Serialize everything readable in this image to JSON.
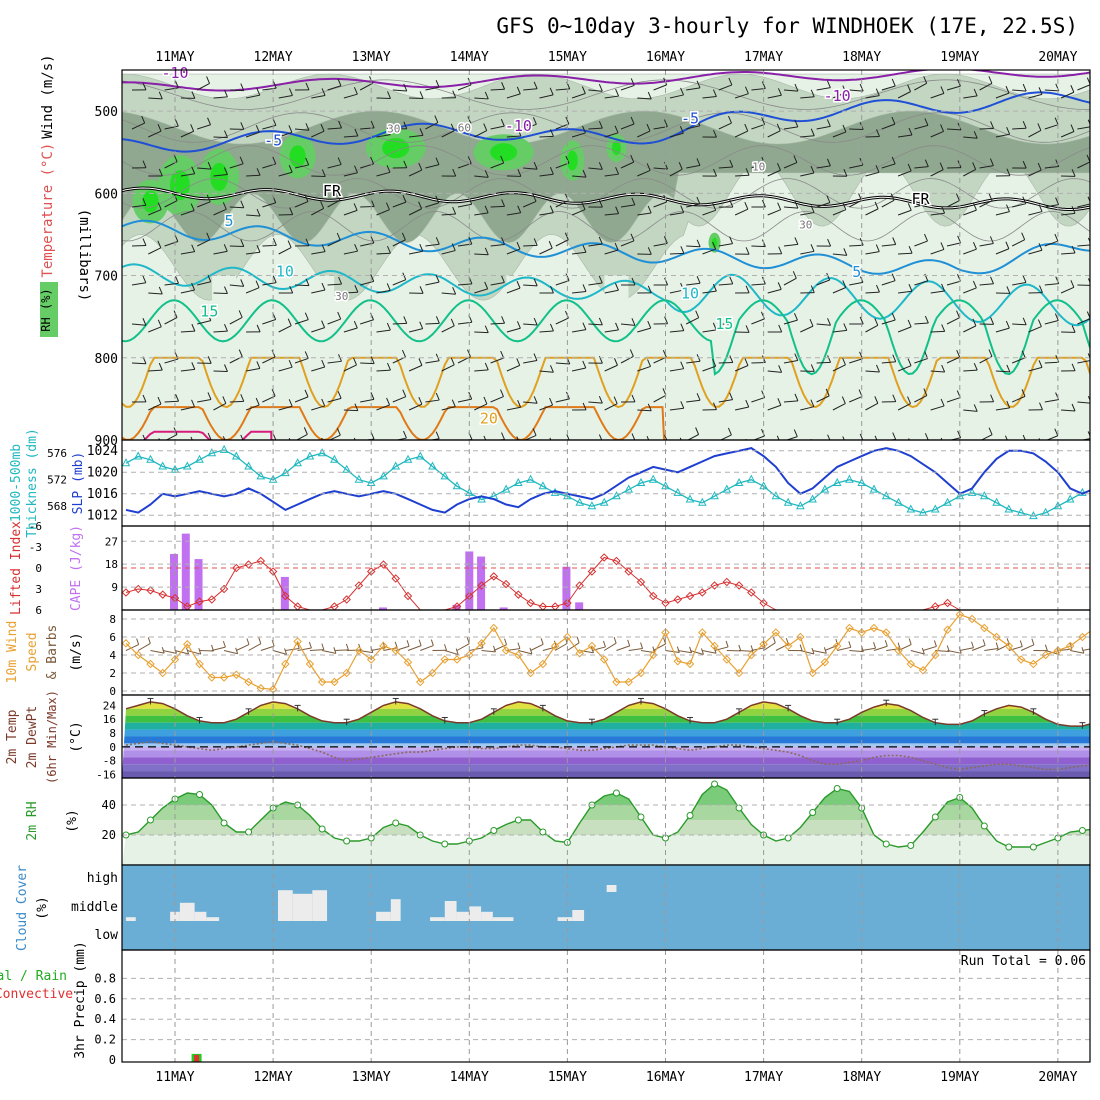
{
  "title": "GFS 0~10day 3-hourly for WINDHOEK (17E, 22.5S)",
  "days": [
    "11MAY",
    "12MAY",
    "13MAY",
    "14MAY",
    "15MAY",
    "16MAY",
    "17MAY",
    "18MAY",
    "19MAY",
    "20MAY"
  ],
  "colors": {
    "rh_light": "#e6f2e6",
    "rh_mid": "#c2d6c2",
    "rh_dark": "#8fa88f",
    "rh_green": "#66cc66",
    "rh_bright": "#22dd22",
    "temp_m10": "#8a1fa8",
    "temp_m5": "#1f4fd6",
    "temp_0": "#000000",
    "temp_5": "#1f8fd6",
    "temp_10": "#1fb8c8",
    "temp_15": "#12c08a",
    "temp_20": "#e0a020",
    "temp_25": "#e07a18",
    "temp_30": "#d81b7a",
    "slp": "#1f3fd0",
    "thickness": "#20b8c0",
    "lifted": "#d83030",
    "cape": "#c070f0",
    "wind_speed": "#e8a030",
    "cloud_bg": "#6aaed6",
    "cloud_fill": "#ececec",
    "rh_line": "#2a9a2a"
  },
  "chart_data": [
    {
      "panel": "cross_section",
      "type": "heatmap",
      "ylabel_parts": [
        "RH (%)",
        "Temperature (°C)",
        "Wind (m/s)"
      ],
      "ylabel_unit": "(millibars)",
      "ylim": [
        900,
        450
      ],
      "yticks": [
        500,
        600,
        700,
        800,
        900
      ],
      "contour_labels": [
        {
          "text": "-10",
          "day": 0.0,
          "p": 460
        },
        {
          "text": "-10",
          "day": 6.75,
          "p": 488
        },
        {
          "text": "-10",
          "day": 3.5,
          "p": 524
        },
        {
          "text": "-5",
          "day": 1.0,
          "p": 542
        },
        {
          "text": "-5",
          "day": 5.25,
          "p": 515
        },
        {
          "text": "FR",
          "day": 1.6,
          "p": 603
        },
        {
          "text": "FR",
          "day": 7.6,
          "p": 613
        },
        {
          "text": "5",
          "day": 0.55,
          "p": 640
        },
        {
          "text": "5",
          "day": 6.95,
          "p": 702
        },
        {
          "text": "10",
          "day": 1.12,
          "p": 701
        },
        {
          "text": "10",
          "day": 5.25,
          "p": 728
        },
        {
          "text": "15",
          "day": 0.35,
          "p": 750
        },
        {
          "text": "15",
          "day": 5.6,
          "p": 765
        },
        {
          "text": "20",
          "day": 3.2,
          "p": 880
        },
        {
          "text": "30",
          "day": 2.23,
          "p": 526
        },
        {
          "text": "30",
          "day": 6.43,
          "p": 643
        },
        {
          "text": "30",
          "day": 1.7,
          "p": 730
        },
        {
          "text": "60",
          "day": 2.95,
          "p": 525
        },
        {
          "text": "10",
          "day": 5.95,
          "p": 572
        }
      ]
    },
    {
      "panel": "slp_thickness",
      "type": "line",
      "ylabel_left": [
        "1000-500mb",
        "Thickness (dm)"
      ],
      "ylabel_right": "SLP (mb)",
      "left_ticks": [
        576,
        572,
        568
      ],
      "right_ticks": [
        1024,
        1020,
        1016,
        1012
      ],
      "series": [
        {
          "name": "SLP (mb)",
          "values": [
            1013,
            1012.5,
            1014,
            1016,
            1015.5,
            1016,
            1016.5,
            1016,
            1015.5,
            1016,
            1017,
            1016,
            1014.5,
            1013,
            1014,
            1015,
            1016,
            1016.5,
            1016,
            1015.5,
            1016,
            1016.5,
            1016,
            1015,
            1014,
            1013,
            1012.5,
            1014,
            1015,
            1015.5,
            1015,
            1014,
            1013.5,
            1015,
            1016,
            1016.5,
            1016,
            1015.5,
            1015,
            1016,
            1017.5,
            1019,
            1020,
            1021,
            1020.5,
            1020,
            1021,
            1022,
            1023,
            1023.5,
            1024,
            1024.5,
            1023,
            1021,
            1018,
            1016,
            1017,
            1019,
            1021,
            1022,
            1023,
            1024,
            1024.5,
            1024,
            1023,
            1021.5,
            1020,
            1018,
            1016,
            1017,
            1020,
            1022.5,
            1024,
            1024,
            1023.5,
            1022,
            1020,
            1017,
            1016,
            1017,
            1019,
            1021,
            1022.5,
            1023,
            1022.5,
            1022,
            1021,
            1020,
            1018,
            1016.5,
            1017,
            1019,
            1021,
            1022,
            1022.5,
            1023
          ]
        },
        {
          "name": "1000-500mb Thickness (dm)",
          "values": [
            574.5,
            575.5,
            575,
            574,
            573.5,
            574,
            575,
            576,
            576.5,
            575.5,
            574,
            572.5,
            572,
            573,
            574.5,
            575.5,
            576,
            575,
            573.5,
            572,
            571.5,
            572.5,
            574,
            575,
            575.5,
            574,
            572.5,
            571,
            570,
            569,
            569.5,
            570.5,
            571.5,
            572,
            571,
            570,
            569.5,
            568.5,
            568,
            568.5,
            569.5,
            570.5,
            571.5,
            572,
            571,
            570,
            569,
            568.5,
            569.5,
            570.5,
            571.5,
            572,
            571,
            569.5,
            568.5,
            568,
            569,
            570.5,
            571.5,
            572,
            571.5,
            570.5,
            569.5,
            568.5,
            567.5,
            567,
            567.5,
            568.5,
            569.5,
            570,
            569.5,
            568.5,
            567.5,
            567,
            566.5,
            567,
            568,
            569,
            570,
            570.5,
            570,
            569,
            568,
            567.5,
            567,
            567.5,
            568.5,
            569.5,
            569,
            568,
            567,
            566.5,
            566.5,
            567,
            567.5,
            567.5
          ]
        }
      ]
    },
    {
      "panel": "lifted_cape",
      "type": "bar",
      "ylabel_left": "Lifted Index",
      "ylabel_right": "CAPE (J/kg)",
      "left_ticks": [
        "-6",
        "-3",
        "0",
        "3",
        "6"
      ],
      "right_ticks": [
        "27",
        "18",
        "9"
      ],
      "series": [
        {
          "name": "Lifted Index",
          "values": [
            3.5,
            3,
            3.2,
            3.8,
            4.3,
            5.5,
            4.8,
            4.5,
            3,
            0,
            -0.5,
            -1,
            0.5,
            4,
            5.5,
            6,
            6,
            5.5,
            4.5,
            2.5,
            0.5,
            -0.5,
            1.5,
            4,
            6,
            6,
            6,
            5.5,
            4,
            2.5,
            1.2,
            2.3,
            3.8,
            5,
            5.5,
            5.5,
            5,
            2.5,
            0.5,
            -1.5,
            -1,
            0.5,
            2,
            4,
            5,
            4.5,
            4,
            3.5,
            2.5,
            2,
            2.5,
            3.5,
            5,
            6,
            6,
            6,
            6,
            6,
            6,
            6,
            6,
            6,
            6,
            6,
            6,
            6,
            5.5,
            5,
            6,
            6,
            6,
            6,
            6,
            6,
            6,
            6,
            6,
            6,
            6,
            6,
            6,
            6,
            6,
            6,
            6,
            6,
            6,
            6,
            6,
            6,
            6,
            6,
            6,
            6,
            6,
            6
          ]
        },
        {
          "name": "CAPE (J/kg)",
          "bars": [
            {
              "day": 0.49,
              "value": 22
            },
            {
              "day": 0.61,
              "value": 30
            },
            {
              "day": 0.74,
              "value": 20
            },
            {
              "day": 1.62,
              "value": 13
            },
            {
              "day": 2.62,
              "value": 1
            },
            {
              "day": 3.37,
              "value": 2
            },
            {
              "day": 3.5,
              "value": 23
            },
            {
              "day": 3.62,
              "value": 21
            },
            {
              "day": 3.85,
              "value": 1
            },
            {
              "day": 4.49,
              "value": 17
            },
            {
              "day": 4.62,
              "value": 3
            }
          ]
        }
      ]
    },
    {
      "panel": "wind10m",
      "type": "line",
      "ylabel": [
        "10m Wind",
        "Speed",
        "& Barbs"
      ],
      "yunit": "(m/s)",
      "yticks": [
        0,
        2,
        4,
        6,
        8
      ],
      "ylim": [
        0,
        9
      ],
      "series": [
        {
          "name": "Speed",
          "values": [
            5.3,
            4,
            3,
            2,
            3.5,
            5.2,
            3,
            1.5,
            1.5,
            1.8,
            1,
            0.3,
            0.2,
            3,
            5.5,
            3,
            1,
            1,
            2,
            4.5,
            3.5,
            5,
            4.5,
            3.2,
            1,
            2,
            3.5,
            3.5,
            4,
            5.3,
            7,
            4.5,
            4,
            2,
            3,
            5,
            6,
            4.2,
            5,
            3.5,
            1,
            1,
            2,
            4,
            6.5,
            3.3,
            3,
            6.5,
            5,
            3.5,
            2,
            4,
            5.2,
            6.5,
            5,
            6,
            2,
            3.2,
            5,
            7,
            6.5,
            7,
            6.5,
            4.5,
            3,
            2.3,
            4,
            6.8,
            8.5,
            8,
            7,
            6,
            5,
            3.5,
            3,
            4,
            4.5,
            5,
            6,
            7,
            7.5,
            5.5,
            3.8,
            4.5,
            3,
            3,
            6,
            8,
            8.5,
            7,
            5,
            3.5,
            3,
            2.5,
            3.5,
            6
          ]
        }
      ]
    },
    {
      "panel": "temp2m",
      "type": "area",
      "ylabel": [
        "2m Temp",
        "2m DewPt",
        "(6hr Min/Max)"
      ],
      "yunit": "(°C)",
      "yticks": [
        "24",
        "16",
        "8",
        "0",
        "-8",
        "-16"
      ],
      "ylim": [
        -18,
        30
      ],
      "series": [
        {
          "name": "2m Temp",
          "values": [
            22,
            24,
            26,
            25,
            22,
            18,
            15,
            14,
            14,
            16,
            20,
            24,
            26,
            25,
            22,
            18,
            15,
            14,
            14,
            16,
            20,
            24,
            26,
            25,
            22,
            18,
            15,
            14,
            14,
            16,
            20,
            24,
            26,
            25,
            22,
            18,
            15,
            14,
            14,
            16,
            20,
            24,
            26,
            25,
            22,
            18,
            15,
            14,
            14,
            16,
            20,
            24,
            26,
            25,
            22,
            18,
            15,
            14,
            14,
            16,
            20,
            23,
            25,
            24,
            21,
            17,
            14,
            13,
            13,
            15,
            19,
            22,
            24,
            23,
            20,
            16,
            13,
            12,
            12,
            14,
            18,
            21,
            23,
            22,
            19,
            15,
            12,
            11,
            11,
            13,
            17,
            21,
            22,
            21,
            18,
            14
          ]
        },
        {
          "name": "2m DewPt",
          "values": [
            1,
            2,
            3,
            2,
            1,
            0,
            -1,
            -2,
            -1,
            0,
            1,
            2,
            3,
            2,
            1,
            -1,
            -3,
            -6,
            -8,
            -7,
            -6,
            -5,
            -4,
            -3,
            -3,
            -2,
            -1,
            0,
            0,
            -1,
            -1,
            0,
            1,
            1,
            0,
            0,
            -1,
            -2,
            -2,
            -1,
            0,
            1,
            1,
            1,
            0,
            -1,
            -2,
            -1,
            0,
            1,
            1,
            0,
            -1,
            -2,
            -3,
            -5,
            -8,
            -10,
            -10,
            -9,
            -8,
            -6,
            -5,
            -5,
            -6,
            -8,
            -10,
            -12,
            -13,
            -12,
            -11,
            -10,
            -10,
            -11,
            -12,
            -13,
            -13,
            -12,
            -11,
            -10,
            -11,
            -12,
            -13,
            -13,
            -12,
            -11,
            -10,
            -10,
            -9,
            -8,
            -7,
            -7,
            -6,
            -5,
            -4,
            -3
          ]
        }
      ]
    },
    {
      "panel": "rh2m",
      "type": "area",
      "ylabel": "2m RH",
      "yunit": "(%)",
      "yticks": [
        20,
        40
      ],
      "ylim": [
        0,
        58
      ],
      "series": [
        {
          "name": "2m RH",
          "values": [
            20,
            22,
            30,
            38,
            44,
            48,
            47,
            40,
            28,
            22,
            22,
            30,
            38,
            42,
            40,
            33,
            24,
            18,
            16,
            16,
            18,
            25,
            28,
            26,
            20,
            16,
            14,
            14,
            16,
            18,
            23,
            27,
            30,
            30,
            22,
            16,
            15,
            28,
            40,
            46,
            48,
            44,
            32,
            20,
            18,
            22,
            33,
            47,
            54,
            50,
            38,
            27,
            20,
            16,
            18,
            25,
            35,
            45,
            51,
            49,
            38,
            20,
            14,
            12,
            13,
            22,
            32,
            42,
            45,
            38,
            26,
            16,
            12,
            12,
            12,
            15,
            18,
            22,
            23,
            24,
            21,
            13,
            11,
            9,
            10,
            17,
            25,
            31,
            33,
            35,
            32,
            28,
            24,
            19,
            15,
            13
          ]
        }
      ]
    },
    {
      "panel": "cloud",
      "type": "bar",
      "ylabel": "Cloud Cover",
      "yunit": "(%)",
      "levels": [
        "high",
        "middle",
        "low"
      ],
      "middle_blocks": [
        [
          0.0,
          0.1,
          2
        ],
        [
          0.45,
          0.55,
          8
        ],
        [
          0.55,
          0.7,
          18
        ],
        [
          0.7,
          0.82,
          8
        ],
        [
          0.82,
          0.95,
          2
        ],
        [
          1.55,
          1.7,
          32
        ],
        [
          1.7,
          1.9,
          28
        ],
        [
          1.9,
          2.05,
          32
        ],
        [
          2.55,
          2.7,
          8
        ],
        [
          2.7,
          2.8,
          22
        ],
        [
          3.1,
          3.25,
          2
        ],
        [
          3.25,
          3.37,
          20
        ],
        [
          3.37,
          3.5,
          8
        ],
        [
          3.5,
          3.62,
          14
        ],
        [
          3.62,
          3.74,
          8
        ],
        [
          3.74,
          3.95,
          2
        ],
        [
          4.4,
          4.55,
          2
        ],
        [
          4.55,
          4.67,
          10
        ]
      ],
      "high_blocks": [
        [
          4.9,
          5.0,
          1
        ]
      ]
    },
    {
      "panel": "precip",
      "type": "bar",
      "ylabel": [
        "Total / Rain",
        "Convective"
      ],
      "ylabel_left": "3hr Precip (mm)",
      "yticks": [
        "0",
        "0.2",
        "0.4",
        "0.6",
        "0.8"
      ],
      "ylim": [
        0,
        1
      ],
      "run_total": "Run Total = 0.06",
      "bars": [
        {
          "day": 0.72,
          "total": 0.06,
          "convective": 0.05
        }
      ]
    }
  ]
}
